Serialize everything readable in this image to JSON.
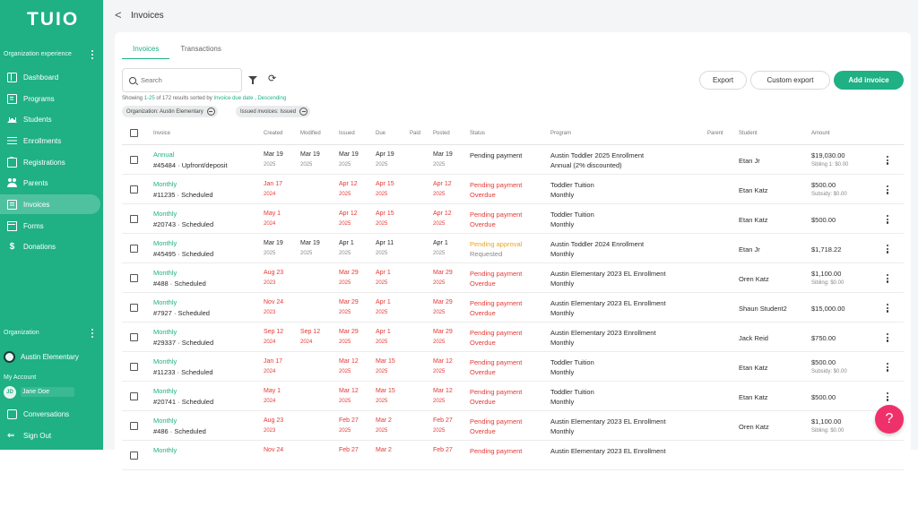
{
  "app": {
    "logo": "TUIO"
  },
  "sidebar": {
    "section_org_experience": "Organization experience",
    "nav": [
      {
        "label": "Dashboard",
        "icon": "dashboard-icon"
      },
      {
        "label": "Programs",
        "icon": "programs-icon"
      },
      {
        "label": "Students",
        "icon": "graduation-cap-icon"
      },
      {
        "label": "Enrollments",
        "icon": "list-icon"
      },
      {
        "label": "Registrations",
        "icon": "clipboard-icon"
      },
      {
        "label": "Parents",
        "icon": "people-icon"
      },
      {
        "label": "Invoices",
        "icon": "invoice-icon"
      },
      {
        "label": "Forms",
        "icon": "form-icon"
      },
      {
        "label": "Donations",
        "icon": "dollar-icon"
      }
    ],
    "section_org": "Organization",
    "org_name": "Austin Elementary",
    "my_account": "My Account",
    "user_initials": "JD",
    "user_name": "Jane Doe",
    "conversations": "Conversations",
    "sign_out": "Sign Out"
  },
  "header": {
    "back": "<",
    "title": "Invoices"
  },
  "tabs": [
    "Invoices",
    "Transactions"
  ],
  "toolbar": {
    "search_placeholder": "Search",
    "refresh": "⟳",
    "export": "Export",
    "custom_export": "Custom export",
    "add_invoice": "Add invoice"
  },
  "results": {
    "prefix": "Showing ",
    "range": "1-25",
    "middle": " of 172 results sorted by ",
    "sort": "Invoice due date",
    "sep": " , ",
    "order": "Descending"
  },
  "chips": [
    "Organization: Austin Elementary",
    "Issued invoices: Issued"
  ],
  "columns": {
    "invoice": "Invoice",
    "created": "Created",
    "modified": "Modified",
    "issued": "Issued",
    "due": "Due",
    "paid": "Paid",
    "posted": "Posted",
    "status": "Status",
    "program": "Program",
    "parent": "Parent",
    "student": "Student",
    "amount": "Amount"
  },
  "rows": [
    {
      "type": "Annual",
      "number": "#45484 · Upfront/deposit",
      "created": [
        "Mar 19",
        "2025"
      ],
      "modified": [
        "Mar 19",
        "2025"
      ],
      "issued": [
        "Mar 19",
        "2025"
      ],
      "due": [
        "Apr 19",
        "2025"
      ],
      "posted": [
        "Mar 19",
        "2025"
      ],
      "status": [
        "Pending payment",
        ""
      ],
      "program": [
        "Austin Toddler 2025 Enrollment",
        "Annual (2% discounted)"
      ],
      "student": "Etan Jr",
      "amount": "$19,030.00",
      "amount_note": "Sibling 1: $0.00",
      "red": false
    },
    {
      "type": "Monthly",
      "number": "#11235 · Scheduled",
      "created": [
        "Jan 17",
        "2024"
      ],
      "modified": [
        "",
        ""
      ],
      "issued": [
        "Apr 12",
        "2025"
      ],
      "due": [
        "Apr 15",
        "2025"
      ],
      "posted": [
        "Apr 12",
        "2025"
      ],
      "status": [
        "Pending payment",
        "Overdue"
      ],
      "program": [
        "Toddler Tuition",
        "Monthly"
      ],
      "student": "Etan Katz",
      "amount": "$500.00",
      "amount_note": "Subsidy: $0.00",
      "red": true
    },
    {
      "type": "Monthly",
      "number": "#20743 · Scheduled",
      "created": [
        "May 1",
        "2024"
      ],
      "modified": [
        "",
        ""
      ],
      "issued": [
        "Apr 12",
        "2025"
      ],
      "due": [
        "Apr 15",
        "2025"
      ],
      "posted": [
        "Apr 12",
        "2025"
      ],
      "status": [
        "Pending payment",
        "Overdue"
      ],
      "program": [
        "Toddler Tuition",
        "Monthly"
      ],
      "student": "Etan Katz",
      "amount": "$500.00",
      "amount_note": "",
      "red": true
    },
    {
      "type": "Monthly",
      "number": "#45495 · Scheduled",
      "created": [
        "Mar 19",
        "2025"
      ],
      "modified": [
        "Mar 19",
        "2025"
      ],
      "issued": [
        "Apr 1",
        "2025"
      ],
      "due": [
        "Apr 11",
        "2025"
      ],
      "posted": [
        "Apr 1",
        "2025"
      ],
      "status": [
        "Pending approval",
        "Requested"
      ],
      "program": [
        "Austin Toddler 2024 Enrollment",
        "Monthly"
      ],
      "student": "Etan Jr",
      "amount": "$1,718.22",
      "amount_note": "",
      "red": false
    },
    {
      "type": "Monthly",
      "number": "#488 · Scheduled",
      "created": [
        "Aug 23",
        "2023"
      ],
      "modified": [
        "",
        ""
      ],
      "issued": [
        "Mar 29",
        "2025"
      ],
      "due": [
        "Apr 1",
        "2025"
      ],
      "posted": [
        "Mar 29",
        "2025"
      ],
      "status": [
        "Pending payment",
        "Overdue"
      ],
      "program": [
        "Austin Elementary 2023 EL Enrollment",
        "Monthly"
      ],
      "student": "Oren Katz",
      "amount": "$1,100.00",
      "amount_note": "Sibling: $0.00",
      "red": true
    },
    {
      "type": "Monthly",
      "number": "#7927 · Scheduled",
      "created": [
        "Nov 24",
        "2023"
      ],
      "modified": [
        "",
        ""
      ],
      "issued": [
        "Mar 29",
        "2025"
      ],
      "due": [
        "Apr 1",
        "2025"
      ],
      "posted": [
        "Mar 29",
        "2025"
      ],
      "status": [
        "Pending payment",
        "Overdue"
      ],
      "program": [
        "Austin Elementary 2023 EL Enrollment",
        "Monthly"
      ],
      "student": "Shaun Student2",
      "amount": "$15,000.00",
      "amount_note": "",
      "red": true
    },
    {
      "type": "Monthly",
      "number": "#29337 · Scheduled",
      "created": [
        "Sep 12",
        "2024"
      ],
      "modified": [
        "Sep 12",
        "2024"
      ],
      "issued": [
        "Mar 29",
        "2025"
      ],
      "due": [
        "Apr 1",
        "2025"
      ],
      "posted": [
        "Mar 29",
        "2025"
      ],
      "status": [
        "Pending payment",
        "Overdue"
      ],
      "program": [
        "Austin Elementary 2023 Enrollment",
        "Monthly"
      ],
      "student": "Jack Reid",
      "amount": "$750.00",
      "amount_note": "",
      "red": true
    },
    {
      "type": "Monthly",
      "number": "#11233 · Scheduled",
      "created": [
        "Jan 17",
        "2024"
      ],
      "modified": [
        "",
        ""
      ],
      "issued": [
        "Mar 12",
        "2025"
      ],
      "due": [
        "Mar 15",
        "2025"
      ],
      "posted": [
        "Mar 12",
        "2025"
      ],
      "status": [
        "Pending payment",
        "Overdue"
      ],
      "program": [
        "Toddler Tuition",
        "Monthly"
      ],
      "student": "Etan Katz",
      "amount": "$500.00",
      "amount_note": "Subsidy: $0.00",
      "red": true
    },
    {
      "type": "Monthly",
      "number": "#20741 · Scheduled",
      "created": [
        "May 1",
        "2024"
      ],
      "modified": [
        "",
        ""
      ],
      "issued": [
        "Mar 12",
        "2025"
      ],
      "due": [
        "Mar 15",
        "2025"
      ],
      "posted": [
        "Mar 12",
        "2025"
      ],
      "status": [
        "Pending payment",
        "Overdue"
      ],
      "program": [
        "Toddler Tuition",
        "Monthly"
      ],
      "student": "Etan Katz",
      "amount": "$500.00",
      "amount_note": "",
      "red": true
    },
    {
      "type": "Monthly",
      "number": "#486 · Scheduled",
      "created": [
        "Aug 23",
        "2023"
      ],
      "modified": [
        "",
        ""
      ],
      "issued": [
        "Feb 27",
        "2025"
      ],
      "due": [
        "Mar 2",
        "2025"
      ],
      "posted": [
        "Feb 27",
        "2025"
      ],
      "status": [
        "Pending payment",
        "Overdue"
      ],
      "program": [
        "Austin Elementary 2023 EL Enrollment",
        "Monthly"
      ],
      "student": "Oren Katz",
      "amount": "$1,100.00",
      "amount_note": "Sibling: $0.00",
      "red": true
    },
    {
      "type": "Monthly",
      "number": "",
      "created": [
        "Nov 24",
        ""
      ],
      "modified": [
        "",
        ""
      ],
      "issued": [
        "Feb 27",
        ""
      ],
      "due": [
        "Mar 2",
        ""
      ],
      "posted": [
        "Feb 27",
        ""
      ],
      "status": [
        "Pending payment",
        ""
      ],
      "program": [
        "Austin Elementary 2023 EL Enrollment",
        ""
      ],
      "student": "",
      "amount": "",
      "amount_note": "",
      "red": true
    }
  ],
  "help": {
    "label": "?"
  },
  "colors": {
    "brand": "#1fb084",
    "overdue": "#e53935",
    "pending_approval": "#f0a31c",
    "help": "#f0306a"
  }
}
